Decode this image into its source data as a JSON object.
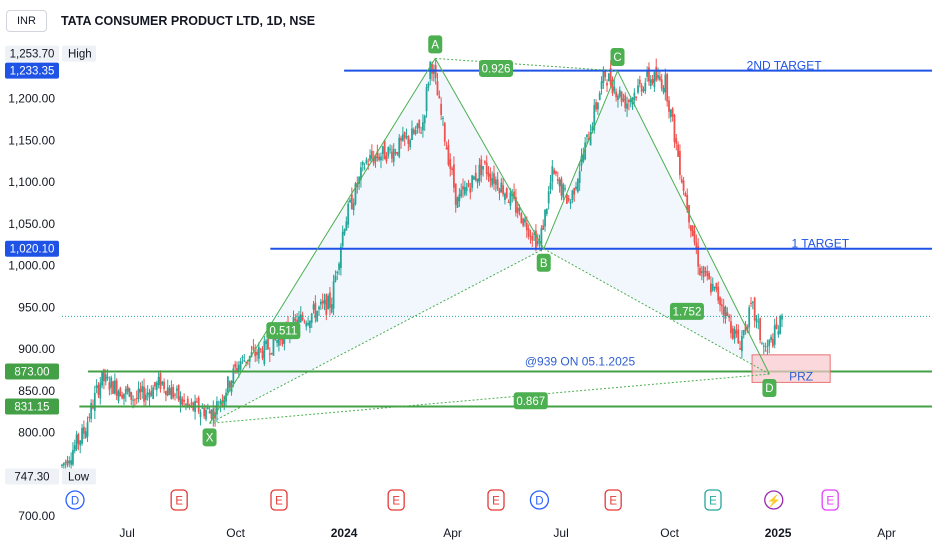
{
  "header": {
    "currency": "INR",
    "title": "TATA CONSUMER PRODUCT LTD, 1D, NSE"
  },
  "price_badges": [
    {
      "label": "1,253.70",
      "tag": "High",
      "price": 1253.7,
      "style": "light"
    },
    {
      "label": "1,233.35",
      "price": 1233.35,
      "style": "blue"
    },
    {
      "label": "1,020.10",
      "price": 1020.1,
      "style": "blue"
    },
    {
      "label": "873.00",
      "price": 873.0,
      "style": "green"
    },
    {
      "label": "831.15",
      "price": 831.15,
      "style": "green"
    },
    {
      "label": "747.30",
      "tag": "Low",
      "price": 747.3,
      "style": "light"
    }
  ],
  "events": [
    {
      "icon": "D",
      "kind": "dividend",
      "date": 2023.38
    },
    {
      "icon": "E",
      "kind": "earnings",
      "date": 2023.62
    },
    {
      "icon": "E",
      "kind": "earnings",
      "date": 2023.85
    },
    {
      "icon": "E",
      "kind": "earnings",
      "date": 2024.12
    },
    {
      "icon": "E",
      "kind": "earnings",
      "date": 2024.35
    },
    {
      "icon": "D",
      "kind": "dividend",
      "date": 2024.45
    },
    {
      "icon": "E",
      "kind": "earnings",
      "date": 2024.62
    },
    {
      "icon": "E",
      "kind": "earnings-next",
      "date": 2024.85
    },
    {
      "icon": "⚡",
      "kind": "split",
      "date": 2024.99
    },
    {
      "icon": "E",
      "kind": "earnings-future",
      "date": 2025.12
    }
  ],
  "colors": {
    "up": "#26a69a",
    "down": "#ef5350",
    "pattern": "#4caf50",
    "blue_line": "#1e53e5",
    "green_line": "#43a047",
    "prz_fill": "#f8c8cc",
    "prz_border": "#e57373",
    "dotted_price": "#26a69a"
  },
  "chart_data": {
    "type": "candlestick",
    "symbol": "TATA CONSUMER PRODUCT LTD",
    "interval": "1D",
    "exchange": "NSE",
    "ylim": [
      700,
      1280
    ],
    "xlim": [
      2023.35,
      2025.37
    ],
    "y_ticks": [
      700,
      800,
      850,
      900,
      950,
      1000,
      1050,
      1100,
      1150,
      1200
    ],
    "y_tick_labels": [
      "700.00",
      "800.00",
      "850.00",
      "900.00",
      "950.00",
      "1,000.00",
      "1,050.00",
      "1,100.00",
      "1,150.00",
      "1,200.00"
    ],
    "x_ticks": [
      {
        "label": "Jul",
        "t": 2023.5,
        "bold": false
      },
      {
        "label": "Oct",
        "t": 2023.75,
        "bold": false
      },
      {
        "label": "2024",
        "t": 2024.0,
        "bold": true
      },
      {
        "label": "Apr",
        "t": 2024.25,
        "bold": false
      },
      {
        "label": "Jul",
        "t": 2024.5,
        "bold": false
      },
      {
        "label": "Oct",
        "t": 2024.75,
        "bold": false
      },
      {
        "label": "2025",
        "t": 2025.0,
        "bold": true
      },
      {
        "label": "Apr",
        "t": 2025.25,
        "bold": false
      }
    ],
    "price_path": [
      [
        2023.35,
        760
      ],
      [
        2023.4,
        800
      ],
      [
        2023.44,
        865
      ],
      [
        2023.52,
        840
      ],
      [
        2023.58,
        860
      ],
      [
        2023.64,
        830
      ],
      [
        2023.7,
        825
      ],
      [
        2023.76,
        885
      ],
      [
        2023.82,
        900
      ],
      [
        2023.9,
        935
      ],
      [
        2023.97,
        955
      ],
      [
        2024.0,
        1050
      ],
      [
        2024.05,
        1125
      ],
      [
        2024.12,
        1140
      ],
      [
        2024.18,
        1165
      ],
      [
        2024.2,
        1248
      ],
      [
        2024.23,
        1160
      ],
      [
        2024.26,
        1075
      ],
      [
        2024.32,
        1120
      ],
      [
        2024.37,
        1090
      ],
      [
        2024.42,
        1050
      ],
      [
        2024.45,
        1025
      ],
      [
        2024.48,
        1110
      ],
      [
        2024.52,
        1075
      ],
      [
        2024.56,
        1150
      ],
      [
        2024.6,
        1230
      ],
      [
        2024.65,
        1195
      ],
      [
        2024.7,
        1225
      ],
      [
        2024.74,
        1220
      ],
      [
        2024.78,
        1100
      ],
      [
        2024.82,
        995
      ],
      [
        2024.87,
        955
      ],
      [
        2024.91,
        905
      ],
      [
        2024.94,
        950
      ],
      [
        2024.97,
        895
      ],
      [
        2025.01,
        935
      ]
    ],
    "pattern": {
      "points": [
        {
          "name": "X",
          "t": 2023.69,
          "price": 811
        },
        {
          "name": "A",
          "t": 2024.21,
          "price": 1248
        },
        {
          "name": "B",
          "t": 2024.46,
          "price": 1020
        },
        {
          "name": "C",
          "t": 2024.63,
          "price": 1233
        },
        {
          "name": "D",
          "t": 2024.98,
          "price": 870
        }
      ],
      "ratios": [
        {
          "label": "0.926",
          "t": 2024.35,
          "price": 1236
        },
        {
          "label": "0.511",
          "t": 2023.86,
          "price": 922
        },
        {
          "label": "1.752",
          "t": 2024.79,
          "price": 945
        },
        {
          "label": "0.867",
          "t": 2024.43,
          "price": 838
        }
      ]
    },
    "lines": [
      {
        "label": "2ND TARGET",
        "price": 1233.35,
        "color": "blue",
        "x_start": 2024.0
      },
      {
        "label": "1 TARGET",
        "price": 1020.1,
        "color": "blue",
        "x_start": 2023.83
      },
      {
        "label": "@939 ON 05.1.2025",
        "price": 873.0,
        "color": "green",
        "x_start": 2023.41
      },
      {
        "label": "",
        "price": 831.15,
        "color": "green",
        "x_start": 2023.39
      }
    ],
    "current_price_line": 939,
    "prz": {
      "label": "PRZ",
      "t0": 2024.94,
      "t1": 2025.12,
      "price_lo": 860,
      "price_hi": 893
    }
  }
}
